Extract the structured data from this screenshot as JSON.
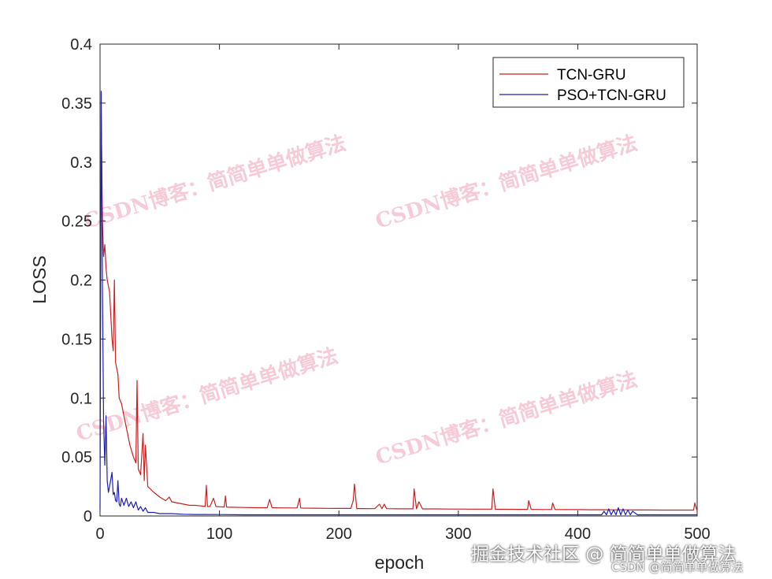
{
  "chart_data": {
    "type": "line",
    "title": "",
    "xlabel": "epoch",
    "ylabel": "LOSS",
    "xlim": [
      0,
      500
    ],
    "ylim": [
      0,
      0.4
    ],
    "xticks": [
      "0",
      "100",
      "200",
      "300",
      "400",
      "500"
    ],
    "yticks": [
      "0",
      "0.05",
      "0.1",
      "0.15",
      "0.2",
      "0.25",
      "0.3",
      "0.35",
      "0.4"
    ],
    "grid": false,
    "legend_position": "top-right",
    "series": [
      {
        "name": "TCN-GRU",
        "color": "#cc1f1f",
        "x": [
          1,
          2,
          3,
          4,
          5,
          6,
          8,
          10,
          11,
          12,
          13,
          15,
          16,
          18,
          20,
          22,
          25,
          28,
          30,
          31,
          32,
          34,
          36,
          37,
          38,
          40,
          45,
          50,
          55,
          58,
          60,
          65,
          70,
          75,
          80,
          85,
          88,
          89,
          90,
          92,
          95,
          97,
          100,
          104,
          105,
          106,
          110,
          120,
          130,
          140,
          142,
          144,
          150,
          160,
          165,
          167,
          168,
          170,
          180,
          190,
          200,
          210,
          212,
          213,
          215,
          220,
          230,
          234,
          236,
          238,
          240,
          250,
          260,
          262,
          263,
          265,
          267,
          270,
          280,
          290,
          300,
          310,
          320,
          328,
          329,
          331,
          340,
          350,
          358,
          359,
          361,
          370,
          378,
          379,
          381,
          390,
          400,
          410,
          420,
          430,
          440,
          450,
          460,
          470,
          480,
          490,
          497,
          498,
          500
        ],
        "y": [
          0.34,
          0.25,
          0.22,
          0.23,
          0.21,
          0.2,
          0.19,
          0.15,
          0.14,
          0.2,
          0.13,
          0.12,
          0.1,
          0.095,
          0.085,
          0.075,
          0.06,
          0.05,
          0.045,
          0.115,
          0.04,
          0.035,
          0.07,
          0.03,
          0.06,
          0.025,
          0.02,
          0.016,
          0.013,
          0.016,
          0.012,
          0.011,
          0.01,
          0.009,
          0.009,
          0.0085,
          0.008,
          0.026,
          0.008,
          0.008,
          0.015,
          0.008,
          0.0078,
          0.0076,
          0.017,
          0.0075,
          0.0074,
          0.0072,
          0.007,
          0.007,
          0.014,
          0.007,
          0.0069,
          0.0068,
          0.0068,
          0.015,
          0.0068,
          0.0067,
          0.0066,
          0.0065,
          0.0064,
          0.0064,
          0.013,
          0.027,
          0.0063,
          0.0063,
          0.0062,
          0.01,
          0.0062,
          0.01,
          0.0062,
          0.0061,
          0.0061,
          0.0061,
          0.023,
          0.006,
          0.012,
          0.006,
          0.006,
          0.0059,
          0.0059,
          0.0058,
          0.0058,
          0.0058,
          0.023,
          0.0057,
          0.0057,
          0.0056,
          0.0056,
          0.013,
          0.0056,
          0.0055,
          0.0055,
          0.011,
          0.0055,
          0.0054,
          0.0054,
          0.0053,
          0.0053,
          0.0052,
          0.0052,
          0.0051,
          0.0051,
          0.005,
          0.005,
          0.005,
          0.005,
          0.011,
          0.004
        ]
      },
      {
        "name": "PSO+TCN-GRU",
        "color": "#1f1fb4",
        "x": [
          0,
          1,
          2,
          3,
          4,
          5,
          6,
          7,
          8,
          10,
          11,
          12,
          13,
          14,
          15,
          16,
          17,
          18,
          20,
          22,
          24,
          26,
          28,
          30,
          32,
          34,
          36,
          38,
          40,
          45,
          50,
          60,
          70,
          80,
          100,
          120,
          150,
          200,
          250,
          300,
          350,
          400,
          420,
          422,
          424,
          426,
          428,
          430,
          432,
          434,
          436,
          438,
          440,
          442,
          444,
          446,
          450,
          470,
          500
        ],
        "y": [
          0.005,
          0.36,
          0.2,
          0.08,
          0.043,
          0.085,
          0.03,
          0.02,
          0.025,
          0.037,
          0.018,
          0.02,
          0.013,
          0.012,
          0.03,
          0.01,
          0.008,
          0.015,
          0.009,
          0.015,
          0.008,
          0.012,
          0.007,
          0.012,
          0.005,
          0.008,
          0.004,
          0.007,
          0.003,
          0.003,
          0.002,
          0.002,
          0.0015,
          0.0013,
          0.0012,
          0.001,
          0.001,
          0.001,
          0.001,
          0.001,
          0.001,
          0.001,
          0.001,
          0.004,
          0.001,
          0.006,
          0.001,
          0.005,
          0.001,
          0.007,
          0.001,
          0.006,
          0.001,
          0.005,
          0.001,
          0.004,
          0.001,
          0.001,
          0.001
        ]
      }
    ]
  },
  "watermark": {
    "text": "CSDN博客：简简单单做算法",
    "color": "#f0a0b8"
  },
  "credit": {
    "main": "掘金技术社区 @ 简简单单做算法",
    "small": "CSDN @简简单单做算法"
  }
}
